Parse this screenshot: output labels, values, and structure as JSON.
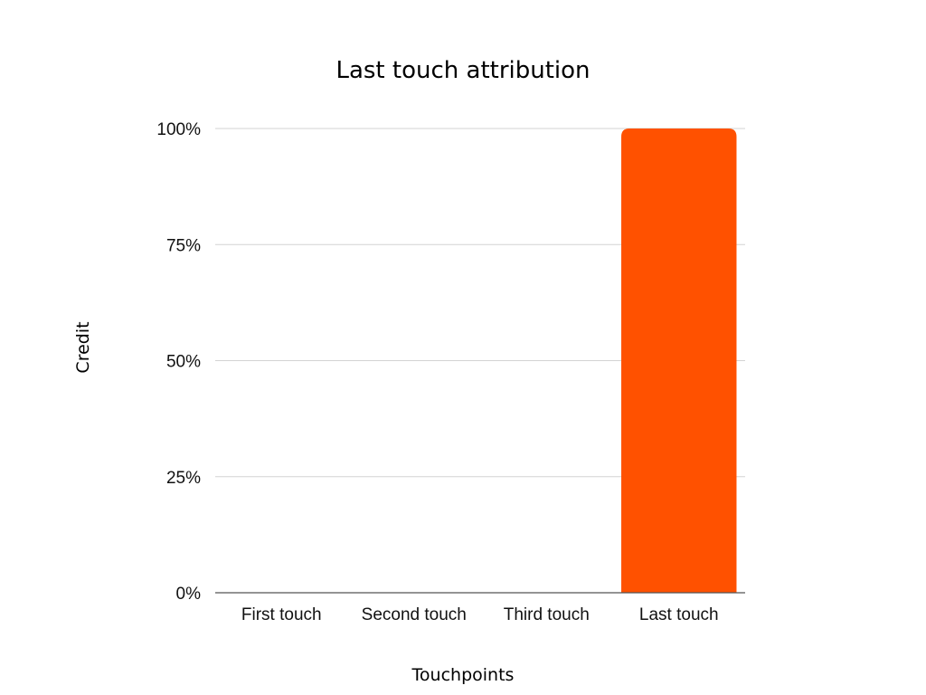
{
  "chart_data": {
    "type": "bar",
    "title": "Last touch attribution",
    "xlabel": "Touchpoints",
    "ylabel": "Credit",
    "categories": [
      "First touch",
      "Second touch",
      "Third touch",
      "Last touch"
    ],
    "values": [
      0,
      0,
      0,
      100
    ],
    "ylim": [
      0,
      100
    ],
    "yticks": [
      "0%",
      "25%",
      "50%",
      "75%",
      "100%"
    ],
    "grid": true,
    "legend": "none",
    "bar_color": "#FF5100"
  }
}
